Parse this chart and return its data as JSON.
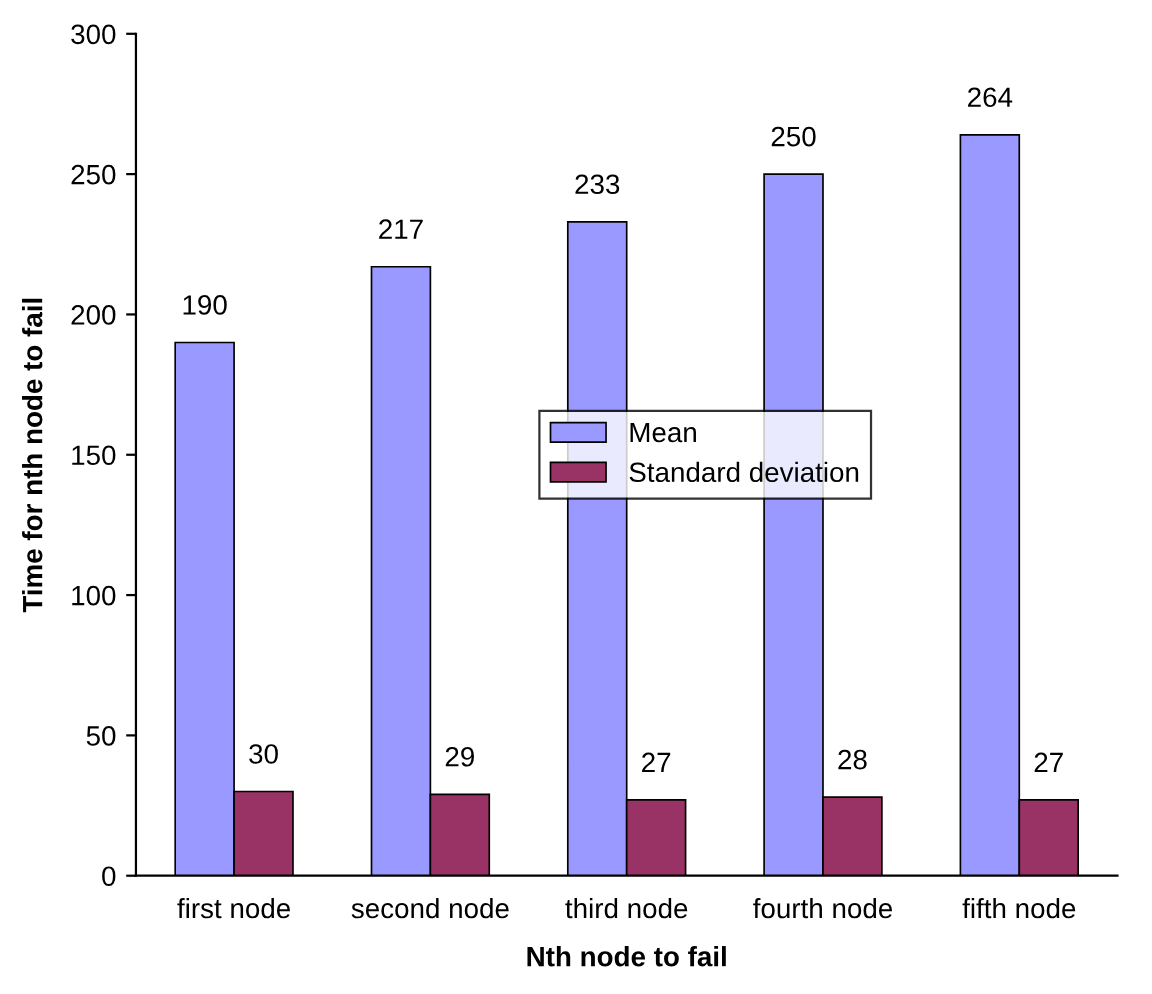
{
  "chart_data": {
    "type": "bar",
    "xlabel": "Nth node to fail",
    "ylabel": "Time for nth node to fail",
    "categories": [
      "first node",
      "second node",
      "third node",
      "fourth node",
      "fifth node"
    ],
    "series": [
      {
        "name": "Mean",
        "color": "#9999ff",
        "values": [
          190,
          217,
          233,
          250,
          264
        ]
      },
      {
        "name": "Standard deviation",
        "color": "#993366",
        "values": [
          30,
          29,
          27,
          28,
          27
        ]
      }
    ],
    "ylim": [
      0,
      300
    ],
    "yticks": [
      0,
      50,
      100,
      150,
      200,
      250,
      300
    ],
    "grid": false,
    "legend": "center",
    "data_labels": true
  }
}
